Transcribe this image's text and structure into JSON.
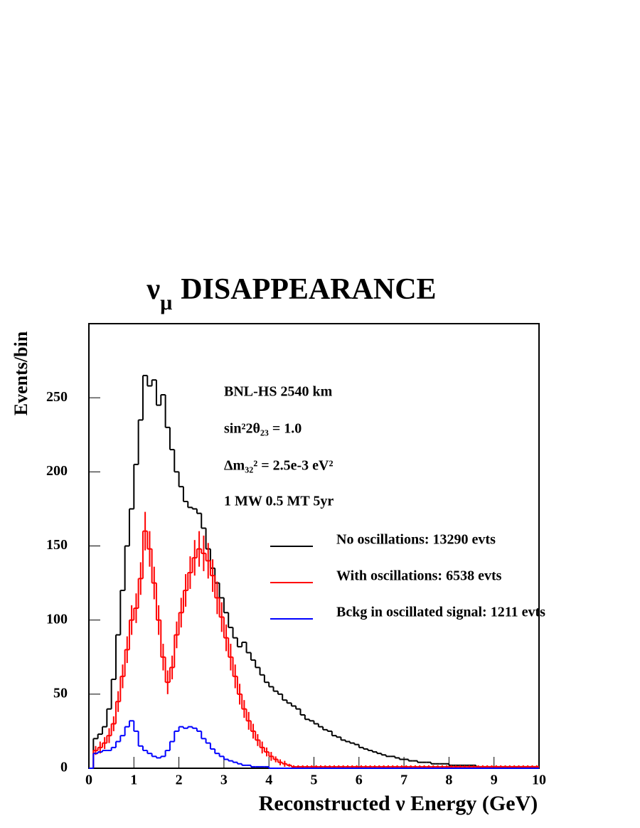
{
  "chart_data": {
    "type": "histogram",
    "title": [
      "ν",
      "μ",
      "DISAPPEARANCE"
    ],
    "xlabel": "Reconstructed ν Energy (GeV)",
    "ylabel": "Events/bin",
    "annotations": [
      "BNL-HS  2540 km",
      "sin²2θ₂₃ = 1.0",
      "Δm₃₂² = 2.5e-3 eV²",
      "1 MW 0.5 MT 5yr"
    ],
    "legend": "upper right",
    "xlim": [
      0,
      10
    ],
    "ylim": [
      0,
      300
    ],
    "xticks": [
      0,
      1,
      2,
      3,
      4,
      5,
      6,
      7,
      8,
      9,
      10
    ],
    "yticks": [
      0,
      50,
      100,
      150,
      200,
      250
    ],
    "bins": [
      0,
      0.1,
      0.2,
      0.3,
      0.4,
      0.5,
      0.6,
      0.7,
      0.8,
      0.9,
      1,
      1.1,
      1.2,
      1.3,
      1.4,
      1.5,
      1.6,
      1.7,
      1.8,
      1.9,
      2,
      2.1,
      2.2,
      2.3,
      2.4,
      2.5,
      2.6,
      2.7,
      2.8,
      2.9,
      3,
      3.1,
      3.2,
      3.3,
      3.4,
      3.5,
      3.6,
      3.7,
      3.8,
      3.9,
      4,
      4.1,
      4.2,
      4.3,
      4.4,
      4.5,
      4.6,
      4.7,
      4.8,
      4.9,
      5,
      5.1,
      5.2,
      5.3,
      5.4,
      5.5,
      5.6,
      5.7,
      5.8,
      5.9,
      6,
      6.1,
      6.2,
      6.3,
      6.4,
      6.5,
      6.6,
      6.7,
      6.8,
      6.9,
      7,
      7.1,
      7.2,
      7.3,
      7.4,
      7.5,
      7.6,
      7.7,
      7.8,
      7.9,
      8,
      8.1,
      8.2,
      8.3,
      8.4,
      8.5,
      8.6,
      8.7,
      8.8,
      8.9,
      9,
      9.1,
      9.2,
      9.3,
      9.4,
      9.5,
      9.6,
      9.7,
      9.8,
      9.9,
      10
    ],
    "series": [
      {
        "name": "No oscillations: 13290 evts",
        "color": "#000000",
        "values": [
          0,
          20,
          23,
          28,
          40,
          60,
          90,
          120,
          150,
          175,
          205,
          235,
          265,
          258,
          262,
          245,
          252,
          230,
          215,
          200,
          190,
          180,
          176,
          175,
          172,
          162,
          148,
          135,
          125,
          115,
          105,
          95,
          88,
          82,
          85,
          78,
          73,
          68,
          63,
          58,
          55,
          52,
          50,
          46,
          44,
          42,
          40,
          36,
          33,
          32,
          30,
          28,
          26,
          25,
          22,
          21,
          19,
          18,
          17,
          16,
          14,
          13,
          12,
          11,
          10,
          9,
          8,
          8,
          7,
          6,
          6,
          5,
          5,
          4,
          4,
          4,
          3,
          3,
          3,
          3,
          2,
          2,
          2,
          2,
          2,
          2,
          1,
          1,
          1,
          1,
          1,
          1,
          1,
          1,
          1,
          1,
          1,
          1,
          1,
          1
        ]
      },
      {
        "name": "With oscillations: 6538 evts",
        "color": "#ff0000",
        "values": [
          0,
          12,
          14,
          17,
          22,
          30,
          45,
          62,
          80,
          100,
          108,
          128,
          160,
          148,
          125,
          100,
          75,
          58,
          68,
          90,
          105,
          120,
          132,
          142,
          148,
          145,
          140,
          130,
          115,
          102,
          88,
          75,
          62,
          50,
          40,
          32,
          25,
          19,
          14,
          11,
          8,
          6,
          4,
          3,
          2,
          1,
          1,
          1,
          1,
          1,
          1,
          1,
          1,
          1,
          1,
          1,
          1,
          1,
          1,
          1,
          1,
          1,
          1,
          1,
          1,
          1,
          1,
          1,
          1,
          1,
          1,
          1,
          1,
          1,
          1,
          1,
          1,
          1,
          1,
          1,
          1,
          1,
          1,
          1,
          1,
          1,
          1,
          1,
          1,
          1,
          1,
          1,
          1,
          1,
          1,
          1,
          1,
          1,
          1,
          1
        ],
        "errors": [
          0,
          3,
          4,
          4,
          5,
          5,
          7,
          8,
          9,
          10,
          10,
          11,
          13,
          12,
          11,
          10,
          9,
          8,
          8,
          9,
          10,
          11,
          11,
          12,
          12,
          12,
          12,
          11,
          11,
          10,
          9,
          9,
          8,
          7,
          6,
          6,
          5,
          4,
          4,
          3,
          3,
          2,
          2,
          2,
          1,
          1,
          1,
          1,
          1,
          1,
          1,
          1,
          1,
          1,
          1,
          1,
          1,
          1,
          1,
          1,
          1,
          1,
          1,
          1,
          1,
          1,
          1,
          1,
          1,
          1,
          1,
          1,
          1,
          1,
          1,
          1,
          1,
          1,
          1,
          1,
          1,
          1,
          1,
          1,
          1,
          1,
          1,
          1,
          1,
          1,
          1,
          1,
          1,
          1,
          1,
          1,
          1,
          1,
          1,
          1
        ]
      },
      {
        "name": "Bckg in oscillated signal: 1211 evts",
        "color": "#0000ff",
        "values": [
          0,
          10,
          11,
          12,
          12,
          14,
          18,
          22,
          28,
          32,
          25,
          15,
          12,
          10,
          8,
          7,
          8,
          12,
          18,
          25,
          28,
          27,
          28,
          27,
          25,
          20,
          17,
          13,
          10,
          8,
          6,
          5,
          4,
          3,
          2,
          2,
          1,
          1,
          1,
          1,
          0,
          0,
          0,
          0,
          0,
          0,
          0,
          0,
          0,
          0,
          0,
          0,
          0,
          0,
          0,
          0,
          0,
          0,
          0,
          0,
          0,
          0,
          0,
          0,
          0,
          0,
          0,
          0,
          0,
          0,
          0,
          0,
          0,
          0,
          0,
          0,
          0,
          0,
          0,
          0,
          0,
          0,
          0,
          0,
          0,
          0,
          0,
          0,
          0,
          0,
          0,
          0,
          0,
          0,
          0,
          0,
          0,
          0,
          0,
          0
        ]
      }
    ]
  }
}
